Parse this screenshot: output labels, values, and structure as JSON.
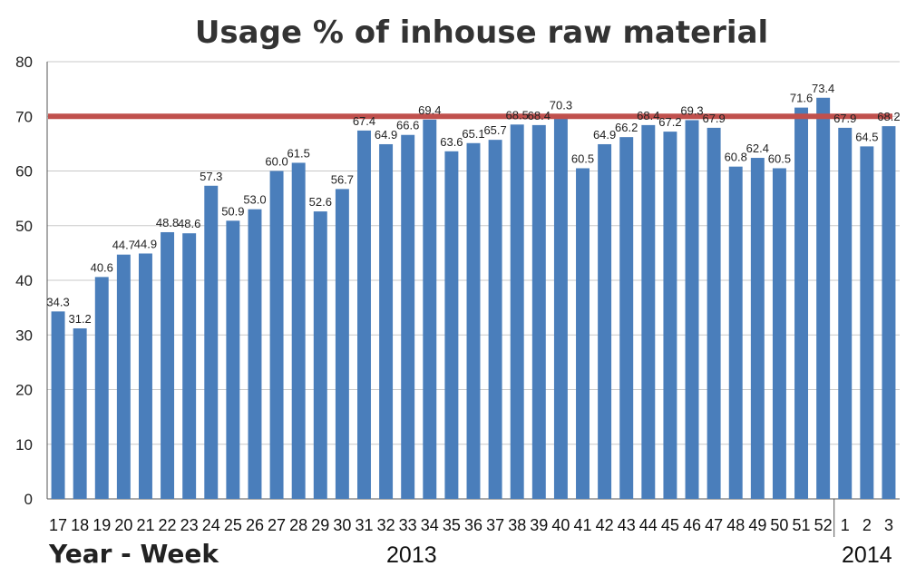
{
  "chart_data": {
    "type": "bar",
    "title": "Usage % of inhouse raw material",
    "xlabel": "Year - Week",
    "ylabel": "",
    "ylim": [
      0,
      80
    ],
    "yticks": [
      0,
      10,
      20,
      30,
      40,
      50,
      60,
      70,
      80
    ],
    "grid": true,
    "legend": "none",
    "categories": [
      "17",
      "18",
      "19",
      "20",
      "21",
      "22",
      "23",
      "24",
      "25",
      "26",
      "27",
      "28",
      "29",
      "30",
      "31",
      "32",
      "33",
      "34",
      "35",
      "36",
      "37",
      "38",
      "39",
      "40",
      "41",
      "42",
      "43",
      "44",
      "45",
      "46",
      "47",
      "48",
      "49",
      "50",
      "51",
      "52",
      "1",
      "2",
      "3"
    ],
    "values": [
      34.3,
      31.2,
      40.6,
      44.7,
      44.9,
      48.8,
      48.6,
      57.3,
      50.9,
      53.0,
      60.0,
      61.5,
      52.6,
      56.7,
      67.4,
      64.9,
      66.6,
      69.4,
      63.6,
      65.1,
      65.7,
      68.5,
      68.4,
      70.3,
      60.5,
      64.9,
      66.2,
      68.4,
      67.2,
      69.3,
      67.9,
      60.8,
      62.4,
      60.5,
      71.6,
      73.4,
      67.9,
      64.5,
      68.2
    ],
    "labels": [
      "34.3",
      "31.2",
      "40.6",
      "44.7",
      "44.9",
      "48.8",
      "48.6",
      "57.3",
      "50.9",
      "53.0",
      "60.0",
      "61.5",
      "52.6",
      "56.7",
      "67.4",
      "64.9",
      "66.6",
      "69.4",
      "63.6",
      "65.1",
      "65.7",
      "68.5",
      "68.4",
      "70.3",
      "60.5",
      "64.9",
      "66.2",
      "68.4",
      "67.2",
      "69.3",
      "67.9",
      "60.8",
      "62.4",
      "60.5",
      "71.6",
      "73.4",
      "67.9",
      "64.5",
      "68.2"
    ],
    "target_line": 70,
    "year_groups": [
      {
        "label": "2013",
        "from": 0,
        "to": 35
      },
      {
        "label": "2014",
        "from": 36,
        "to": 38
      }
    ],
    "colors": {
      "bar": "#4a7ebb",
      "target": "#c0504d",
      "grid": "#c8c8c8",
      "axis": "#555555"
    }
  }
}
